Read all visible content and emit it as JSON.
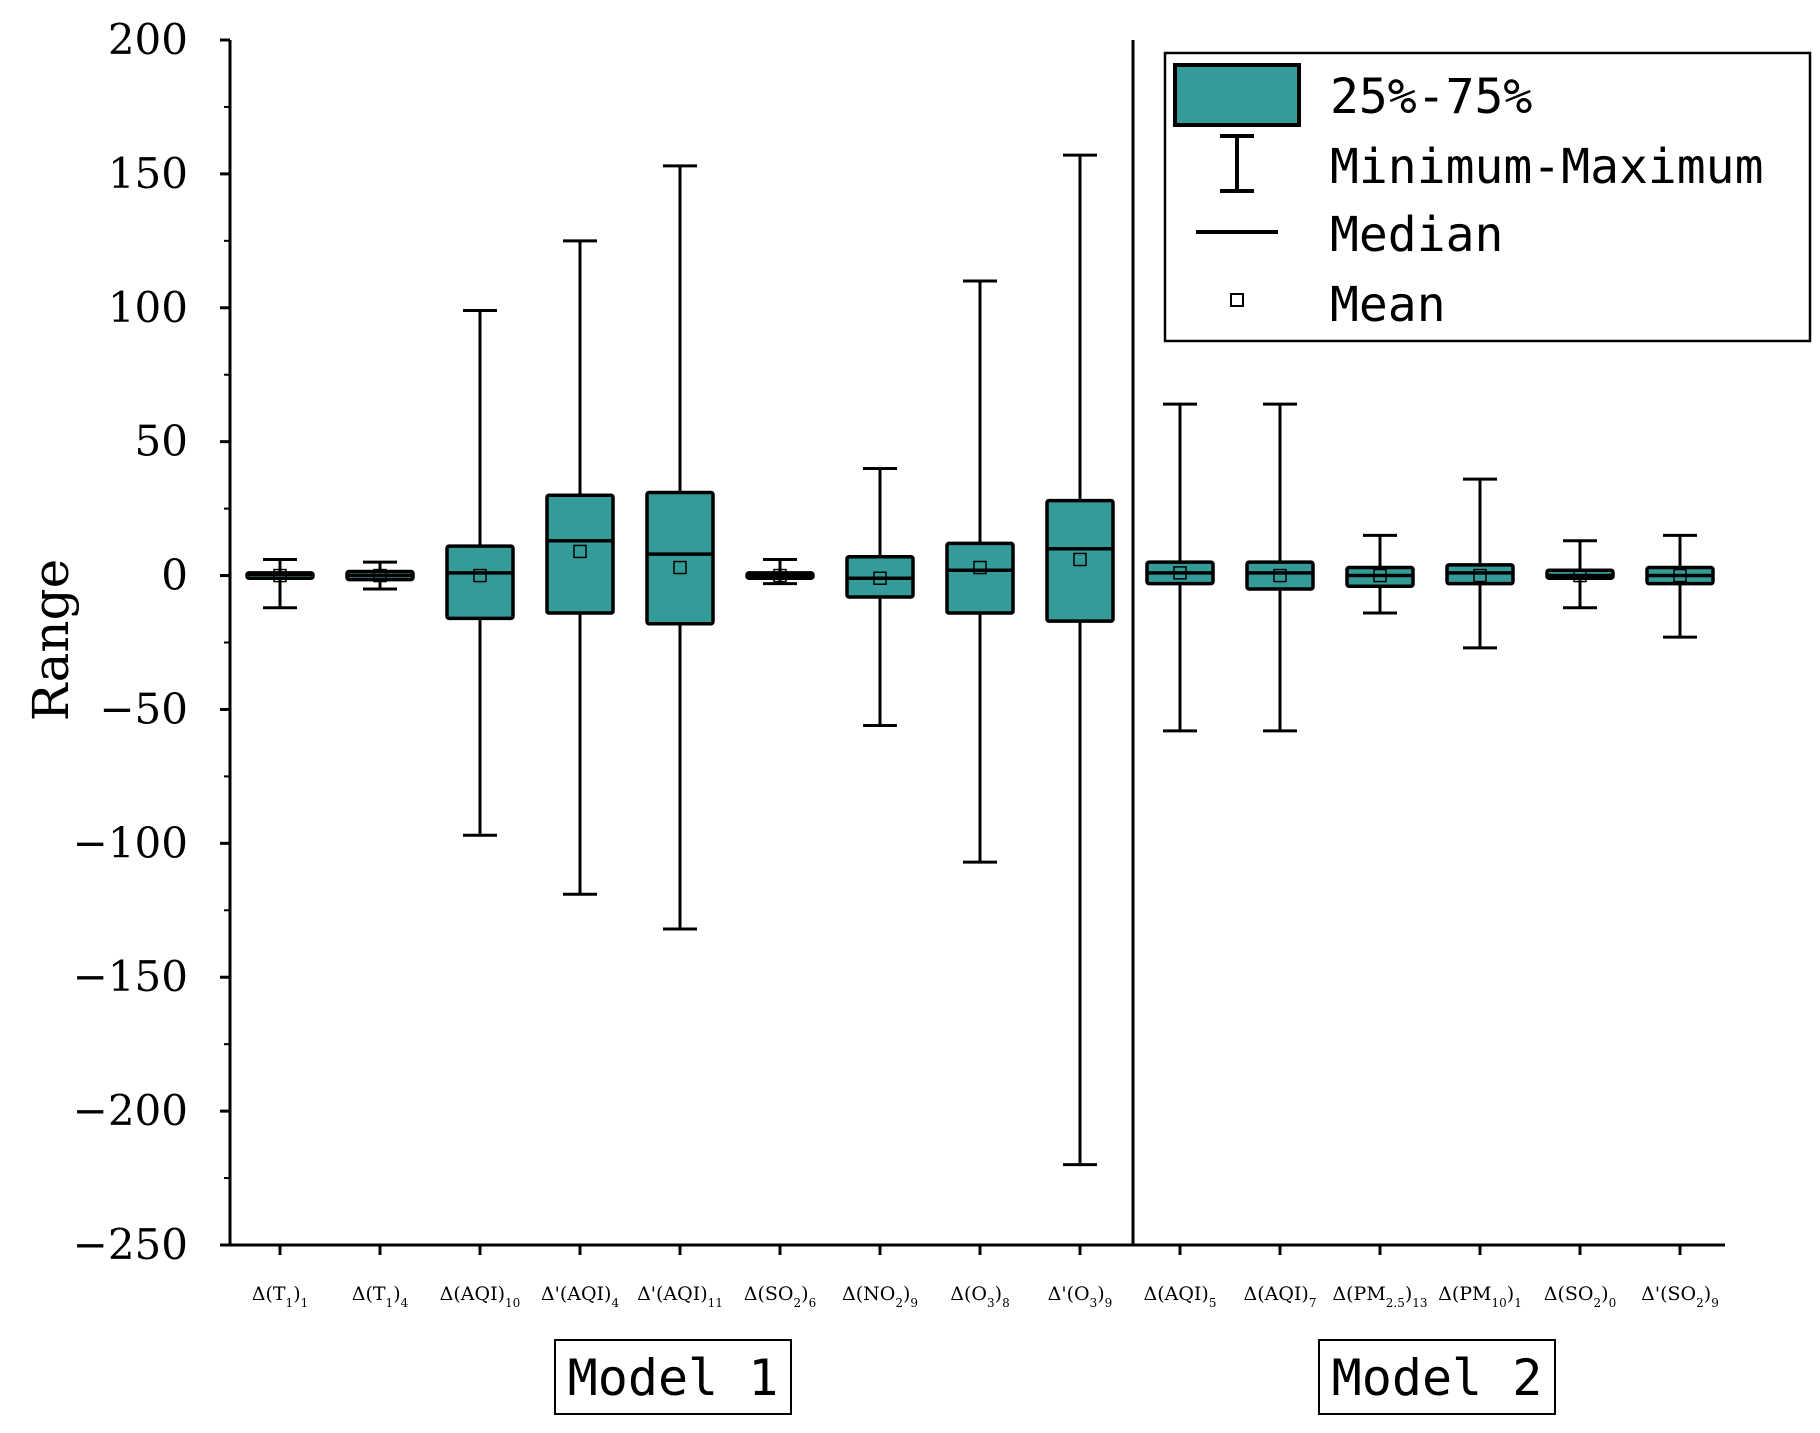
{
  "chart_data": {
    "type": "boxplot",
    "ylabel": "Range",
    "ylim": [
      -250,
      200
    ],
    "yticks": [
      200,
      150,
      100,
      50,
      0,
      -50,
      -100,
      -150,
      -200,
      -250
    ],
    "box_color": "#339c99",
    "categories": [
      {
        "base": "Δ(T",
        "sub1": "1",
        "mid": ")",
        "sub2": "1"
      },
      {
        "base": "Δ(T",
        "sub1": "1",
        "mid": ")",
        "sub2": "4"
      },
      {
        "base": "Δ(AQI)",
        "sub1": "",
        "mid": "",
        "sub2": "10"
      },
      {
        "base": "Δ'(AQI)",
        "sub1": "",
        "mid": "",
        "sub2": "4"
      },
      {
        "base": "Δ'(AQI)",
        "sub1": "",
        "mid": "",
        "sub2": "11"
      },
      {
        "base": "Δ(SO",
        "sub1": "2",
        "mid": ")",
        "sub2": "6"
      },
      {
        "base": "Δ(NO",
        "sub1": "2",
        "mid": ")",
        "sub2": "9"
      },
      {
        "base": "Δ(O",
        "sub1": "3",
        "mid": ")",
        "sub2": "8"
      },
      {
        "base": "Δ'(O",
        "sub1": "3",
        "mid": ")",
        "sub2": "9"
      },
      {
        "base": "Δ(AQI)",
        "sub1": "",
        "mid": "",
        "sub2": "5"
      },
      {
        "base": "Δ(AQI)",
        "sub1": "",
        "mid": "",
        "sub2": "7"
      },
      {
        "base": "Δ(PM",
        "sub1": "2.5",
        "mid": ")",
        "sub2": "13"
      },
      {
        "base": "Δ(PM",
        "sub1": "10",
        "mid": ")",
        "sub2": "1"
      },
      {
        "base": "Δ(SO",
        "sub1": "2",
        "mid": ")",
        "sub2": "0"
      },
      {
        "base": "Δ'(SO",
        "sub1": "2",
        "mid": ")",
        "sub2": "9"
      }
    ],
    "series": [
      {
        "min": -12,
        "q1": -1,
        "median": 0.5,
        "q3": 1,
        "max": 6,
        "mean": 0
      },
      {
        "min": -5,
        "q1": -1.5,
        "median": 0,
        "q3": 1.5,
        "max": 5,
        "mean": 0
      },
      {
        "min": -97,
        "q1": -16,
        "median": 1,
        "q3": 11,
        "max": 99,
        "mean": 0
      },
      {
        "min": -119,
        "q1": -14,
        "median": 13,
        "q3": 30,
        "max": 125,
        "mean": 9
      },
      {
        "min": -132,
        "q1": -18,
        "median": 8,
        "q3": 31,
        "max": 153,
        "mean": 3
      },
      {
        "min": -3,
        "q1": -1,
        "median": 0,
        "q3": 1,
        "max": 6,
        "mean": 0
      },
      {
        "min": -56,
        "q1": -8,
        "median": -1,
        "q3": 7,
        "max": 40,
        "mean": -1
      },
      {
        "min": -107,
        "q1": -14,
        "median": 2,
        "q3": 12,
        "max": 110,
        "mean": 3
      },
      {
        "min": -220,
        "q1": -17,
        "median": 10,
        "q3": 28,
        "max": 157,
        "mean": 6
      },
      {
        "min": -58,
        "q1": -3,
        "median": 1,
        "q3": 5,
        "max": 64,
        "mean": 1
      },
      {
        "min": -58,
        "q1": -5,
        "median": 1,
        "q3": 5,
        "max": 64,
        "mean": 0
      },
      {
        "min": -14,
        "q1": -4,
        "median": 0,
        "q3": 3,
        "max": 15,
        "mean": 0
      },
      {
        "min": -27,
        "q1": -3,
        "median": 1,
        "q3": 4,
        "max": 36,
        "mean": 0
      },
      {
        "min": -12,
        "q1": -1,
        "median": 0,
        "q3": 2,
        "max": 13,
        "mean": 0
      },
      {
        "min": -23,
        "q1": -3,
        "median": 0,
        "q3": 3,
        "max": 15,
        "mean": 0
      }
    ],
    "divider_between": [
      9,
      10
    ],
    "groups": [
      {
        "label": "Model 1",
        "first": 1,
        "last": 9
      },
      {
        "label": "Model 2",
        "first": 10,
        "last": 15
      }
    ],
    "legend": {
      "box": "25%-75%",
      "whisker": "Minimum-Maximum",
      "median": "Median",
      "mean": "Mean",
      "position": "top-right"
    }
  }
}
